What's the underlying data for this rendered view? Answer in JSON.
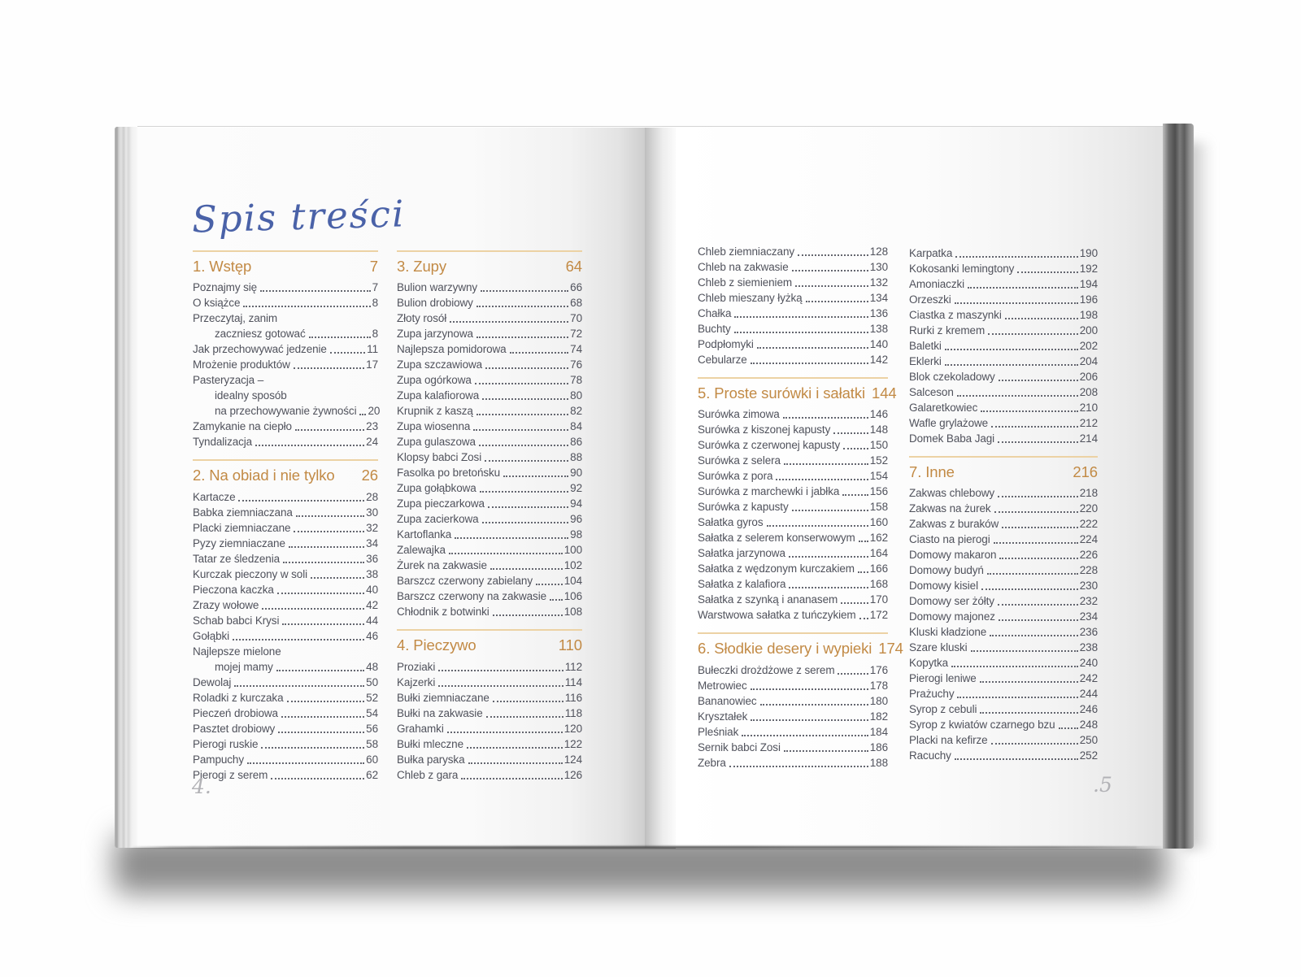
{
  "page_title": "Spis treści",
  "folio_left": "4.",
  "folio_right": ".5",
  "colors": {
    "accent_orange": "#c28a45",
    "header_rule": "#ecd2a4",
    "entry_text": "#50525c",
    "title_blue": "#4a62a8",
    "folio_gray": "#b2b2b6"
  },
  "columns": [
    {
      "blocks": [
        {
          "header": {
            "label": "1. Wstęp",
            "page": "7"
          },
          "entries": [
            {
              "lines": [
                "Poznajmy się"
              ],
              "page": "7"
            },
            {
              "lines": [
                "O książce"
              ],
              "page": "8"
            },
            {
              "lines": [
                "Przeczytaj, zanim",
                "zaczniesz gotować"
              ],
              "page": "8"
            },
            {
              "lines": [
                "Jak przechowywać jedzenie"
              ],
              "page": "11"
            },
            {
              "lines": [
                "Mrożenie produktów"
              ],
              "page": "17"
            },
            {
              "lines": [
                "Pasteryzacja –",
                "idealny sposób",
                "na przechowywanie żywności"
              ],
              "page": "20"
            },
            {
              "lines": [
                "Zamykanie na ciepło"
              ],
              "page": "23"
            },
            {
              "lines": [
                "Tyndalizacja"
              ],
              "page": "24"
            }
          ]
        },
        {
          "header": {
            "label": "2. Na obiad i nie tylko",
            "page": "26"
          },
          "entries": [
            {
              "lines": [
                "Kartacze"
              ],
              "page": "28"
            },
            {
              "lines": [
                "Babka ziemniaczana"
              ],
              "page": "30"
            },
            {
              "lines": [
                "Placki ziemniaczane"
              ],
              "page": "32"
            },
            {
              "lines": [
                "Pyzy ziemniaczane"
              ],
              "page": "34"
            },
            {
              "lines": [
                "Tatar ze śledzenia"
              ],
              "page": "36"
            },
            {
              "lines": [
                "Kurczak pieczony w soli"
              ],
              "page": "38"
            },
            {
              "lines": [
                "Pieczona kaczka"
              ],
              "page": "40"
            },
            {
              "lines": [
                "Zrazy wołowe"
              ],
              "page": "42"
            },
            {
              "lines": [
                "Schab babci Krysi"
              ],
              "page": "44"
            },
            {
              "lines": [
                "Gołąbki"
              ],
              "page": "46"
            },
            {
              "lines": [
                "Najlepsze mielone",
                "mojej mamy"
              ],
              "page": "48"
            },
            {
              "lines": [
                "Dewolaj"
              ],
              "page": "50"
            },
            {
              "lines": [
                "Roladki z kurczaka"
              ],
              "page": "52"
            },
            {
              "lines": [
                "Pieczeń drobiowa"
              ],
              "page": "54"
            },
            {
              "lines": [
                "Pasztet drobiowy"
              ],
              "page": "56"
            },
            {
              "lines": [
                "Pierogi ruskie"
              ],
              "page": "58"
            },
            {
              "lines": [
                "Pampuchy"
              ],
              "page": "60"
            },
            {
              "lines": [
                "Pierogi z serem"
              ],
              "page": "62"
            }
          ]
        }
      ]
    },
    {
      "blocks": [
        {
          "header": {
            "label": "3. Zupy",
            "page": "64"
          },
          "entries": [
            {
              "lines": [
                "Bulion warzywny"
              ],
              "page": "66"
            },
            {
              "lines": [
                "Bulion drobiowy"
              ],
              "page": "68"
            },
            {
              "lines": [
                "Złoty rosół"
              ],
              "page": "70"
            },
            {
              "lines": [
                "Zupa jarzynowa"
              ],
              "page": "72"
            },
            {
              "lines": [
                "Najlepsza pomidorowa"
              ],
              "page": "74"
            },
            {
              "lines": [
                "Zupa szczawiowa"
              ],
              "page": "76"
            },
            {
              "lines": [
                "Zupa ogórkowa"
              ],
              "page": "78"
            },
            {
              "lines": [
                "Zupa kalafiorowa"
              ],
              "page": "80"
            },
            {
              "lines": [
                "Krupnik z kaszą"
              ],
              "page": "82"
            },
            {
              "lines": [
                "Zupa wiosenna"
              ],
              "page": "84"
            },
            {
              "lines": [
                "Zupa gulaszowa"
              ],
              "page": "86"
            },
            {
              "lines": [
                "Klopsy babci Zosi"
              ],
              "page": "88"
            },
            {
              "lines": [
                "Fasolka po bretońsku"
              ],
              "page": "90"
            },
            {
              "lines": [
                "Zupa gołąbkowa"
              ],
              "page": "92"
            },
            {
              "lines": [
                "Zupa pieczarkowa"
              ],
              "page": "94"
            },
            {
              "lines": [
                "Zupa zacierkowa"
              ],
              "page": "96"
            },
            {
              "lines": [
                "Kartoflanka"
              ],
              "page": "98"
            },
            {
              "lines": [
                "Zalewajka"
              ],
              "page": "100"
            },
            {
              "lines": [
                "Żurek na zakwasie"
              ],
              "page": "102"
            },
            {
              "lines": [
                "Barszcz czerwony zabielany"
              ],
              "page": "104"
            },
            {
              "lines": [
                "Barszcz czerwony na zakwasie"
              ],
              "page": "106"
            },
            {
              "lines": [
                "Chłodnik z botwinki"
              ],
              "page": "108"
            }
          ]
        },
        {
          "header": {
            "label": "4. Pieczywo",
            "page": "110"
          },
          "entries": [
            {
              "lines": [
                "Proziaki"
              ],
              "page": "112"
            },
            {
              "lines": [
                "Kajzerki"
              ],
              "page": "114"
            },
            {
              "lines": [
                "Bułki ziemniaczane"
              ],
              "page": "116"
            },
            {
              "lines": [
                "Bułki na zakwasie"
              ],
              "page": "118"
            },
            {
              "lines": [
                "Grahamki"
              ],
              "page": "120"
            },
            {
              "lines": [
                "Bułki mleczne"
              ],
              "page": "122"
            },
            {
              "lines": [
                "Bułka paryska"
              ],
              "page": "124"
            },
            {
              "lines": [
                "Chleb z gara"
              ],
              "page": "126"
            }
          ]
        }
      ]
    },
    {
      "blocks": [
        {
          "entries": [
            {
              "lines": [
                "Chleb ziemniaczany"
              ],
              "page": "128"
            },
            {
              "lines": [
                "Chleb na zakwasie"
              ],
              "page": "130"
            },
            {
              "lines": [
                "Chleb z siemieniem"
              ],
              "page": "132"
            },
            {
              "lines": [
                "Chleb mieszany łyżką"
              ],
              "page": "134"
            },
            {
              "lines": [
                "Chałka"
              ],
              "page": "136"
            },
            {
              "lines": [
                "Buchty"
              ],
              "page": "138"
            },
            {
              "lines": [
                "Podpłomyki"
              ],
              "page": "140"
            },
            {
              "lines": [
                "Cebularze"
              ],
              "page": "142"
            }
          ]
        },
        {
          "header": {
            "label": "5. Proste surówki i sałatki",
            "page": "144"
          },
          "entries": [
            {
              "lines": [
                "Surówka zimowa"
              ],
              "page": "146"
            },
            {
              "lines": [
                "Surówka z kiszonej kapusty"
              ],
              "page": "148"
            },
            {
              "lines": [
                "Surówka z czerwonej kapusty"
              ],
              "page": "150"
            },
            {
              "lines": [
                "Surówka z selera"
              ],
              "page": "152"
            },
            {
              "lines": [
                "Surówka z pora"
              ],
              "page": "154"
            },
            {
              "lines": [
                "Surówka z marchewki i jabłka"
              ],
              "page": "156"
            },
            {
              "lines": [
                "Surówka z kapusty"
              ],
              "page": "158"
            },
            {
              "lines": [
                "Sałatka gyros"
              ],
              "page": "160"
            },
            {
              "lines": [
                "Sałatka z selerem konserwowym"
              ],
              "page": "162"
            },
            {
              "lines": [
                "Sałatka jarzynowa"
              ],
              "page": "164"
            },
            {
              "lines": [
                "Sałatka z wędzonym kurczakiem"
              ],
              "page": "166"
            },
            {
              "lines": [
                "Sałatka z kalafiora"
              ],
              "page": "168"
            },
            {
              "lines": [
                "Sałatka z szynką i ananasem"
              ],
              "page": "170"
            },
            {
              "lines": [
                "Warstwowa sałatka z tuńczykiem"
              ],
              "page": "172"
            }
          ]
        },
        {
          "header": {
            "label": "6. Słodkie desery i wypieki",
            "page": "174"
          },
          "entries": [
            {
              "lines": [
                "Bułeczki drożdżowe z serem"
              ],
              "page": "176"
            },
            {
              "lines": [
                "Metrowiec"
              ],
              "page": "178"
            },
            {
              "lines": [
                "Bananowiec"
              ],
              "page": "180"
            },
            {
              "lines": [
                "Kryształek"
              ],
              "page": "182"
            },
            {
              "lines": [
                "Pleśniak"
              ],
              "page": "184"
            },
            {
              "lines": [
                "Sernik babci Zosi"
              ],
              "page": "186"
            },
            {
              "lines": [
                "Zebra"
              ],
              "page": "188"
            }
          ]
        }
      ]
    },
    {
      "blocks": [
        {
          "entries": [
            {
              "lines": [
                "Karpatka"
              ],
              "page": "190"
            },
            {
              "lines": [
                "Kokosanki lemingtony"
              ],
              "page": "192"
            },
            {
              "lines": [
                "Amoniaczki"
              ],
              "page": "194"
            },
            {
              "lines": [
                "Orzeszki"
              ],
              "page": "196"
            },
            {
              "lines": [
                "Ciastka z maszynki"
              ],
              "page": "198"
            },
            {
              "lines": [
                "Rurki z kremem"
              ],
              "page": "200"
            },
            {
              "lines": [
                "Baletki"
              ],
              "page": "202"
            },
            {
              "lines": [
                "Eklerki"
              ],
              "page": "204"
            },
            {
              "lines": [
                "Blok czekoladowy"
              ],
              "page": "206"
            },
            {
              "lines": [
                "Salceson"
              ],
              "page": "208"
            },
            {
              "lines": [
                "Galaretkowiec"
              ],
              "page": "210"
            },
            {
              "lines": [
                "Wafle grylażowe"
              ],
              "page": "212"
            },
            {
              "lines": [
                "Domek Baba Jagi"
              ],
              "page": "214"
            }
          ]
        },
        {
          "header": {
            "label": "7. Inne",
            "page": "216"
          },
          "entries": [
            {
              "lines": [
                "Zakwas chlebowy"
              ],
              "page": "218"
            },
            {
              "lines": [
                "Zakwas na żurek"
              ],
              "page": "220"
            },
            {
              "lines": [
                "Zakwas z buraków"
              ],
              "page": "222"
            },
            {
              "lines": [
                "Ciasto na pierogi"
              ],
              "page": "224"
            },
            {
              "lines": [
                "Domowy makaron"
              ],
              "page": "226"
            },
            {
              "lines": [
                "Domowy budyń"
              ],
              "page": "228"
            },
            {
              "lines": [
                "Domowy kisiel"
              ],
              "page": "230"
            },
            {
              "lines": [
                "Domowy ser żółty"
              ],
              "page": "232"
            },
            {
              "lines": [
                "Domowy majonez"
              ],
              "page": "234"
            },
            {
              "lines": [
                "Kluski kładzione"
              ],
              "page": "236"
            },
            {
              "lines": [
                "Szare kluski"
              ],
              "page": "238"
            },
            {
              "lines": [
                "Kopytka"
              ],
              "page": "240"
            },
            {
              "lines": [
                "Pierogi leniwe"
              ],
              "page": "242"
            },
            {
              "lines": [
                "Prażuchy"
              ],
              "page": "244"
            },
            {
              "lines": [
                "Syrop z cebuli"
              ],
              "page": "246"
            },
            {
              "lines": [
                "Syrop z kwiatów czarnego bzu"
              ],
              "page": "248"
            },
            {
              "lines": [
                "Placki na kefirze"
              ],
              "page": "250"
            },
            {
              "lines": [
                "Racuchy"
              ],
              "page": "252"
            }
          ]
        }
      ]
    }
  ]
}
